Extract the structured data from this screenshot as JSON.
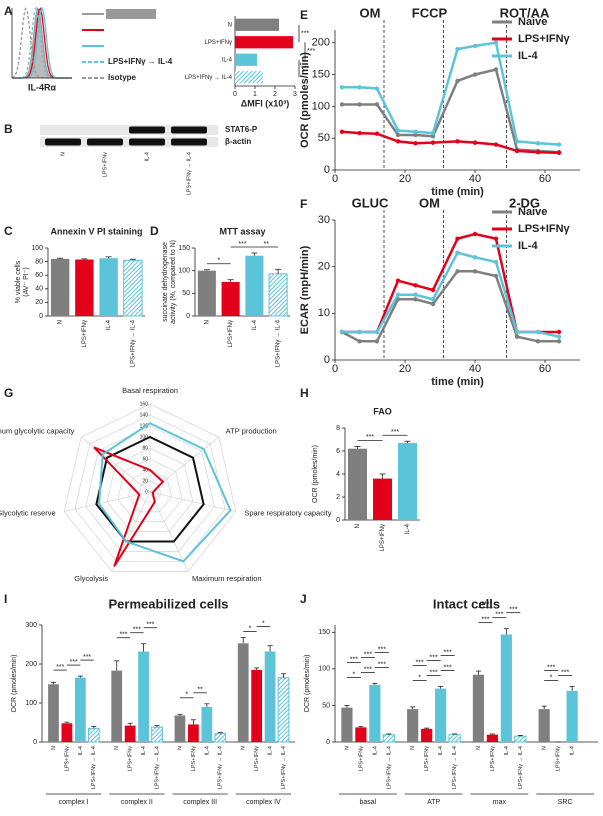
{
  "chart_data": [
    {
      "panel": "A",
      "type": "histogram-overlay",
      "xlabel": "IL-4Rα",
      "series": [
        {
          "name": null,
          "color": "#999999",
          "dash": false
        },
        {
          "name": null,
          "color": "#e2001a",
          "dash": false
        },
        {
          "name": null,
          "color": "#5bc4d9",
          "dash": false
        },
        {
          "name": "LPS+IFNγ → IL-4",
          "color": "#5bc4d9",
          "dash": true
        },
        {
          "name": "Isotype",
          "color": "#999999",
          "dash": true
        }
      ]
    },
    {
      "type": "hbar",
      "categories": [
        "N",
        "LPS+IFNγ",
        "IL-4",
        "LPS+IFNγ → IL-4"
      ],
      "values": [
        2.2,
        2.9,
        1.1,
        1.4
      ],
      "errors": [
        0.05,
        0.05,
        0.05,
        0.08
      ],
      "colors": [
        "#7f7f7f",
        "#e2001a",
        "#5bc4d9",
        "#5bc4d9"
      ],
      "hatched": [
        false,
        false,
        false,
        true
      ],
      "xlim": [
        0,
        3
      ],
      "xticks": [
        0,
        1,
        2,
        3
      ],
      "xlabel": "ΔMFI (x10³)",
      "annotations": [
        "***",
        "***",
        "***"
      ]
    },
    {
      "panel": "B",
      "type": "blot",
      "bands": [
        "STAT6-P",
        "β-actin"
      ],
      "lanes": [
        "N",
        "LPS+IFNγ",
        "IL-4",
        "LPS+IFNγ → IL-4"
      ]
    },
    {
      "panel": "C",
      "type": "bar",
      "title": "Annexin V PI staining",
      "ylabel": [
        "% viable cells",
        "(AV⁻ PI⁻)"
      ],
      "categories": [
        "N",
        "LPS+IFNγ",
        "IL-4",
        "LPS+IFNγ → IL-4"
      ],
      "values": [
        84,
        83,
        85,
        82
      ],
      "errors": [
        1,
        1,
        2,
        1.5
      ],
      "colors": [
        "#7f7f7f",
        "#e2001a",
        "#5bc4d9",
        "#5bc4d9"
      ],
      "hatched": [
        false,
        false,
        false,
        true
      ],
      "ylim": [
        0,
        100
      ],
      "yticks": [
        0,
        20,
        40,
        60,
        80,
        100
      ],
      "annotations": []
    },
    {
      "panel": "D",
      "type": "bar",
      "title": "MTT assay",
      "ylabel": [
        "succinate dehydrogenase",
        "activity (%, compared to N)"
      ],
      "categories": [
        "N",
        "LPS+IFNγ",
        "IL-4",
        "LPS+IFNγ → IL-4"
      ],
      "values": [
        100,
        75,
        133,
        93
      ],
      "errors": [
        2,
        5,
        6,
        10
      ],
      "colors": [
        "#7f7f7f",
        "#e2001a",
        "#5bc4d9",
        "#5bc4d9"
      ],
      "hatched": [
        false,
        false,
        false,
        true
      ],
      "ylim": [
        0,
        150
      ],
      "yticks": [
        0,
        50,
        100,
        150
      ],
      "annotations": [
        "*",
        "***",
        "**"
      ]
    },
    {
      "panel": "E",
      "type": "line",
      "ylabel": "OCR (pmoles/min)",
      "xlabel": "time (min)",
      "x": [
        2,
        7,
        12,
        18,
        23,
        28,
        35,
        40,
        46,
        52,
        58,
        64
      ],
      "xlim": [
        0,
        70
      ],
      "xticks": [
        0,
        20,
        40,
        60
      ],
      "ylim": [
        0,
        220
      ],
      "yticks": [
        0,
        50,
        100,
        150,
        200
      ],
      "vlines": [
        {
          "x": 14,
          "label": "OM"
        },
        {
          "x": 31,
          "label": "FCCP"
        },
        {
          "x": 49,
          "label": "ROT/AA"
        }
      ],
      "series": [
        {
          "name": "Naive",
          "color": "#7f7f7f",
          "values": [
            103,
            103,
            103,
            55,
            55,
            53,
            140,
            150,
            158,
            32,
            30,
            28
          ]
        },
        {
          "name": "LPS+IFNγ",
          "color": "#e2001a",
          "values": [
            60,
            58,
            57,
            45,
            42,
            43,
            45,
            43,
            40,
            30,
            28,
            27
          ]
        },
        {
          "name": "IL-4",
          "color": "#5bc4d9",
          "values": [
            130,
            130,
            128,
            62,
            60,
            58,
            190,
            195,
            200,
            45,
            42,
            40
          ]
        }
      ]
    },
    {
      "panel": "F",
      "type": "line",
      "ylabel": "ECAR (mpH/min)",
      "xlabel": "time (min)",
      "x": [
        2,
        7,
        12,
        18,
        23,
        28,
        35,
        40,
        46,
        52,
        58,
        64
      ],
      "xlim": [
        0,
        70
      ],
      "xticks": [
        0,
        20,
        40,
        60
      ],
      "ylim": [
        0,
        30
      ],
      "yticks": [
        0,
        10,
        20,
        30
      ],
      "vlines": [
        {
          "x": 14,
          "label": "GLUC"
        },
        {
          "x": 31,
          "label": "OM"
        },
        {
          "x": 49,
          "label": "2-DG"
        }
      ],
      "series": [
        {
          "name": "Naive",
          "color": "#7f7f7f",
          "values": [
            6,
            4,
            4,
            13,
            13,
            12,
            19,
            19,
            18,
            5,
            4,
            4
          ]
        },
        {
          "name": "LPS+IFNγ",
          "color": "#e2001a",
          "values": [
            6,
            6,
            6,
            17,
            16,
            15,
            26,
            27,
            26,
            6,
            6,
            6
          ]
        },
        {
          "name": "IL-4",
          "color": "#5bc4d9",
          "values": [
            6,
            6,
            6,
            14,
            14,
            13,
            23,
            22,
            21,
            6,
            6,
            5
          ]
        }
      ]
    },
    {
      "panel": "G",
      "type": "radar",
      "axes": [
        "Basal respiration",
        "ATP production",
        "Spare respiratory capacity",
        "Maximum respiration",
        "Glycolysis",
        "Glycolytic reserve",
        "Maximum glycolytic capacity"
      ],
      "rlim": [
        0,
        160
      ],
      "rticks": [
        0,
        20,
        40,
        60,
        80,
        100,
        120,
        140,
        160
      ],
      "series": [
        {
          "color": "#111111",
          "values": [
            100,
            100,
            100,
            100,
            100,
            100,
            100
          ]
        },
        {
          "color": "#e2001a",
          "values": [
            40,
            30,
            5,
            20,
            150,
            20,
            130
          ]
        },
        {
          "color": "#5bc4d9",
          "values": [
            125,
            125,
            150,
            140,
            100,
            95,
            110
          ]
        }
      ]
    },
    {
      "panel": "H",
      "type": "bar",
      "title": "FAO",
      "ylabel": [
        "OCR (pmoles/min)"
      ],
      "categories": [
        "N",
        "LPS+IFNγ",
        "IL-4"
      ],
      "values": [
        6.2,
        3.6,
        6.7
      ],
      "errors": [
        0.2,
        0.4,
        0.15
      ],
      "colors": [
        "#7f7f7f",
        "#e2001a",
        "#5bc4d9"
      ],
      "hatched": [
        false,
        false,
        false
      ],
      "ylim": [
        0,
        8
      ],
      "yticks": [
        0,
        2,
        4,
        6,
        8
      ],
      "annotations": [
        "***",
        "***"
      ]
    },
    {
      "panel": "I",
      "type": "grouped-bar",
      "title": "Permeabilized cells",
      "ylabel": "OCR (pmoles/min)",
      "ylim": [
        0,
        300
      ],
      "yticks": [
        0,
        100,
        200,
        300
      ],
      "colors": [
        "#7f7f7f",
        "#e2001a",
        "#5bc4d9",
        "#5bc4d9"
      ],
      "hatched": [
        false,
        false,
        false,
        true
      ],
      "groups": [
        {
          "name": "complex I",
          "categories": [
            "N",
            "LPS+IFNγ",
            "IL-4",
            "LPS+IFNγ → IL-4"
          ],
          "values": [
            148,
            48,
            165,
            35
          ],
          "errors": [
            5,
            3,
            4,
            5
          ],
          "annotations": [
            "***",
            "***",
            "***"
          ]
        },
        {
          "name": "complex II",
          "categories": [
            "N",
            "LPS+IFNγ",
            "IL-4",
            "LPS+IFNγ → IL-4"
          ],
          "values": [
            183,
            42,
            232,
            38
          ],
          "errors": [
            25,
            6,
            20,
            4
          ],
          "annotations": [
            "***",
            "***",
            "***"
          ]
        },
        {
          "name": "complex III",
          "categories": [
            "N",
            "LPS+IFNγ",
            "IL-4",
            "LPS+IFNγ → IL-4"
          ],
          "values": [
            68,
            45,
            90,
            22
          ],
          "errors": [
            3,
            12,
            8,
            2
          ],
          "annotations": [
            "*",
            "**"
          ]
        },
        {
          "name": "complex IV",
          "categories": [
            "N",
            "LPS+IFNγ",
            "IL-4",
            "LPS+IFNγ → IL-4"
          ],
          "values": [
            253,
            185,
            232,
            165
          ],
          "errors": [
            15,
            5,
            15,
            10
          ],
          "annotations": [
            "*",
            "*"
          ]
        }
      ]
    },
    {
      "panel": "J",
      "type": "grouped-bar",
      "title": "Intact cells",
      "ylabel": "OCR (pmoles/min)",
      "ylim": [
        0,
        160
      ],
      "yticks": [
        0,
        50,
        100,
        150
      ],
      "colors": [
        "#7f7f7f",
        "#e2001a",
        "#5bc4d9",
        "#5bc4d9"
      ],
      "hatched": [
        false,
        false,
        false,
        true
      ],
      "groups": [
        {
          "name": "basal",
          "categories": [
            "N",
            "LPS+IFNγ",
            "IL-4",
            "LPS+IFNγ → IL-4"
          ],
          "values": [
            47,
            20,
            78,
            10
          ],
          "errors": [
            3,
            1,
            2,
            1
          ],
          "annotations": [
            "*",
            "***",
            "***",
            "***",
            "***",
            "***"
          ]
        },
        {
          "name": "ATP",
          "categories": [
            "N",
            "LPS+IFNγ",
            "IL-4",
            "LPS+IFNγ → IL-4"
          ],
          "values": [
            45,
            18,
            73,
            10
          ],
          "errors": [
            3,
            1,
            3,
            1
          ],
          "annotations": [
            "*",
            "***",
            "***",
            "***",
            "***",
            "***"
          ]
        },
        {
          "name": "max",
          "categories": [
            "N",
            "LPS+IFNγ",
            "IL-4",
            "LPS+IFNγ → IL-4"
          ],
          "values": [
            92,
            10,
            147,
            8
          ],
          "errors": [
            5,
            1,
            8,
            1
          ],
          "annotations": [
            "***",
            "***",
            "***",
            "***"
          ]
        },
        {
          "name": "SRC",
          "categories": [
            "N",
            "LPS+IFNγ",
            "IL-4"
          ],
          "values": [
            45,
            0,
            70
          ],
          "errors": [
            4,
            0,
            6
          ],
          "annotations": [
            "*",
            "***",
            "***"
          ]
        }
      ]
    }
  ]
}
